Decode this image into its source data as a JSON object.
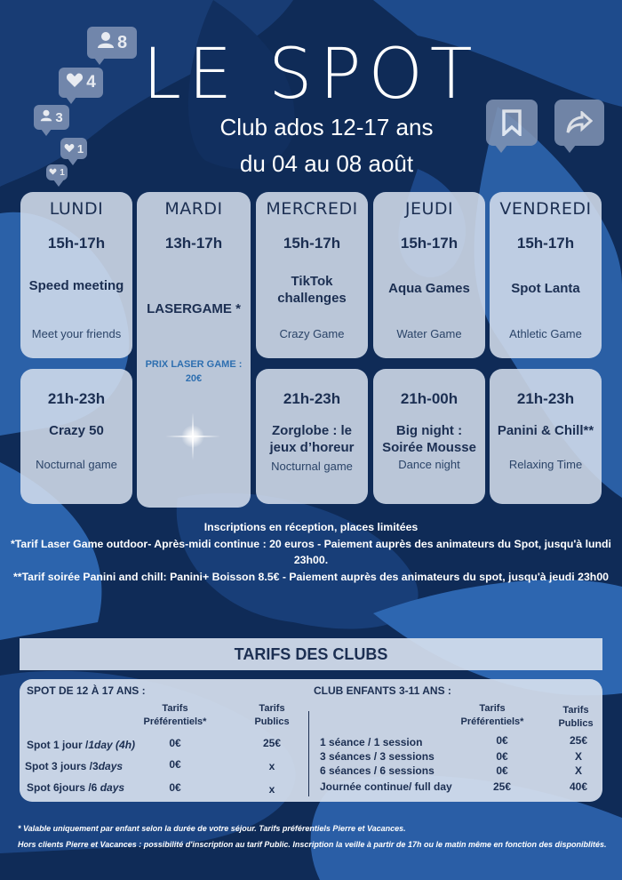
{
  "header": {
    "title": "LE SPOT",
    "subtitle": "Club ados 12-17 ans",
    "dates": "du 04 au 08 août"
  },
  "social": {
    "followers": "8",
    "likes": "4",
    "users": "3",
    "hearts_small": "1",
    "hearts_tiny": "1"
  },
  "days": [
    {
      "name": "LUNDI",
      "afternoon": {
        "time": "15h-17h",
        "activity": "Speed meeting",
        "desc": "Meet your friends"
      },
      "evening": {
        "time": "21h-23h",
        "activity": "Crazy 50",
        "desc": "Nocturnal game"
      }
    },
    {
      "name": "MARDI",
      "afternoon": {
        "time": "13h-17h",
        "activity": "LASERGAME *",
        "price": "PRIX LASER GAME : 20€"
      }
    },
    {
      "name": "MERCREDI",
      "afternoon": {
        "time": "15h-17h",
        "activity": "TikTok challenges",
        "desc": "Crazy Game"
      },
      "evening": {
        "time": "21h-23h",
        "activity": "Zorglobe : le jeux d’horeur",
        "desc": "Nocturnal game"
      }
    },
    {
      "name": "JEUDI",
      "afternoon": {
        "time": "15h-17h",
        "activity": "Aqua Games",
        "desc": "Water Game"
      },
      "evening": {
        "time": "21h-00h",
        "activity": "Big night : Soirée Mousse",
        "desc": "Dance night"
      }
    },
    {
      "name": "VENDREDI",
      "afternoon": {
        "time": "15h-17h",
        "activity": "Spot Lanta",
        "desc": "Athletic Game"
      },
      "evening": {
        "time": "21h-23h",
        "activity": "Panini & Chill**",
        "desc": "Relaxing Time"
      }
    }
  ],
  "notes": {
    "inscriptions": "Inscriptions en réception, places limitées",
    "laser": "*Tarif Laser Game outdoor- Après-midi continue : 20 euros - Paiement auprès des animateurs du Spot, jusqu'à lundi 23h00.",
    "panini": "**Tarif soirée Panini and chill: Panini+ Boisson 8.5€ - Paiement auprès des animateurs du spot, jusqu'à jeudi 23h00"
  },
  "tarifs": {
    "title": "TARIFS DES CLUBS",
    "spot": {
      "heading": "SPOT DE 12 À 17 ANS :",
      "col_pref": "Tarifs Préférentiels*",
      "col_pub": "Tarifs Publics",
      "rows": [
        {
          "label": "Spot 1 jour /",
          "label_italic": "1day (4h)",
          "pref": "0€",
          "pub": "25€"
        },
        {
          "label": "Spot 3 jours /3",
          "label_italic": "days",
          "pref": "0€",
          "pub": "x"
        },
        {
          "label": "Spot 6jours /6 ",
          "label_italic": "days",
          "pref": "0€",
          "pub": "x"
        }
      ]
    },
    "enfants": {
      "heading": "CLUB ENFANTS 3-11 ANS :",
      "col_pref": "Tarifs Préférentiels*",
      "col_pub": "Tarifs Publics",
      "rows": [
        {
          "label": "1 séance / 1 session",
          "pref": "0€",
          "pub": "25€"
        },
        {
          "label": "3 séances / 3 sessions",
          "pref": "0€",
          "pub": "X"
        },
        {
          "label": "6 séances / 6 sessions",
          "pref": "0€",
          "pub": "X"
        },
        {
          "label": "Journée continue/ full day",
          "pref": "25€",
          "pub": "40€"
        }
      ]
    }
  },
  "footnotes": {
    "line1": "* Valable uniquement par enfant selon la durée de votre séjour. Tarifs préférentiels Pierre et Vacances.",
    "line2": "Hors clients Pierre et Vacances : possibilité d'inscription au tarif Public. Inscription la veille à partir de 17h ou le matin même en fonction des disponiblités."
  },
  "colors": {
    "background": "#0e2a55",
    "card": "#d6e0ee",
    "text_dark": "#1c2f52",
    "price_blue": "#2e6fb0"
  }
}
